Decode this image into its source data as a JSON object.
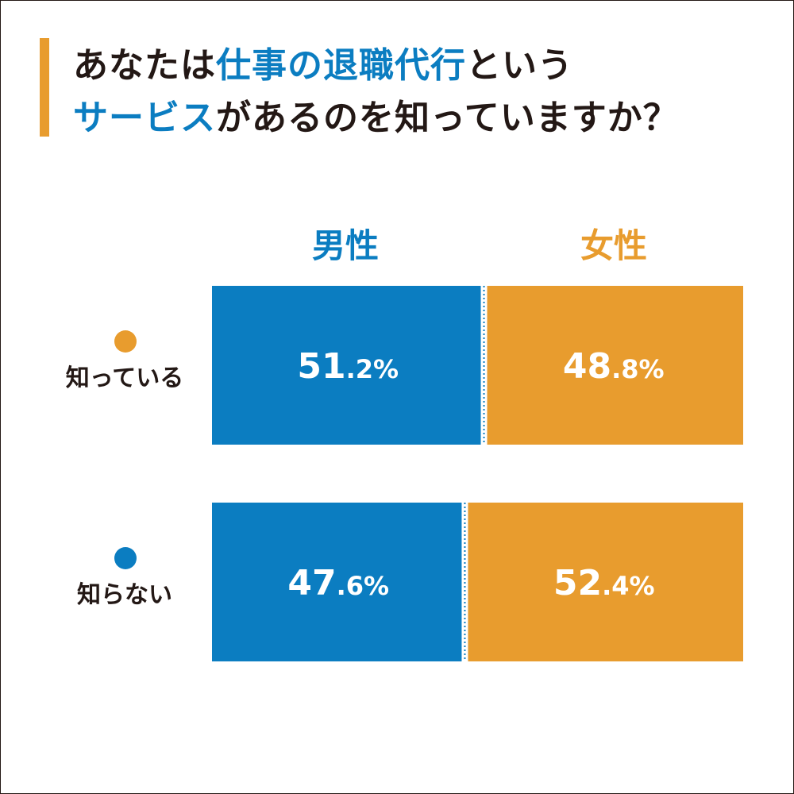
{
  "title": {
    "line1_a": "あなたは",
    "line1_b": "仕事の退職代行",
    "line1_c": "という",
    "line2_a": "サービス",
    "line2_b": "があるのを知っていますか？"
  },
  "colors": {
    "male": "#0b7dc1",
    "female": "#e89c2e",
    "text": "#231815",
    "accent_bar": "#e89c2e"
  },
  "chart_data": {
    "type": "bar",
    "stacked": true,
    "orientation": "horizontal",
    "categories": [
      "知っている",
      "知らない"
    ],
    "category_marker_colors": [
      "#e89c2e",
      "#0b7dc1"
    ],
    "series": [
      {
        "name": "男性",
        "values": [
          51.2,
          47.6
        ],
        "labels": [
          "51.2%",
          "47.6%"
        ]
      },
      {
        "name": "女性",
        "values": [
          48.8,
          52.4
        ],
        "labels": [
          "48.8%",
          "52.4%"
        ]
      }
    ],
    "xlim": [
      0,
      100
    ],
    "grid": false
  }
}
